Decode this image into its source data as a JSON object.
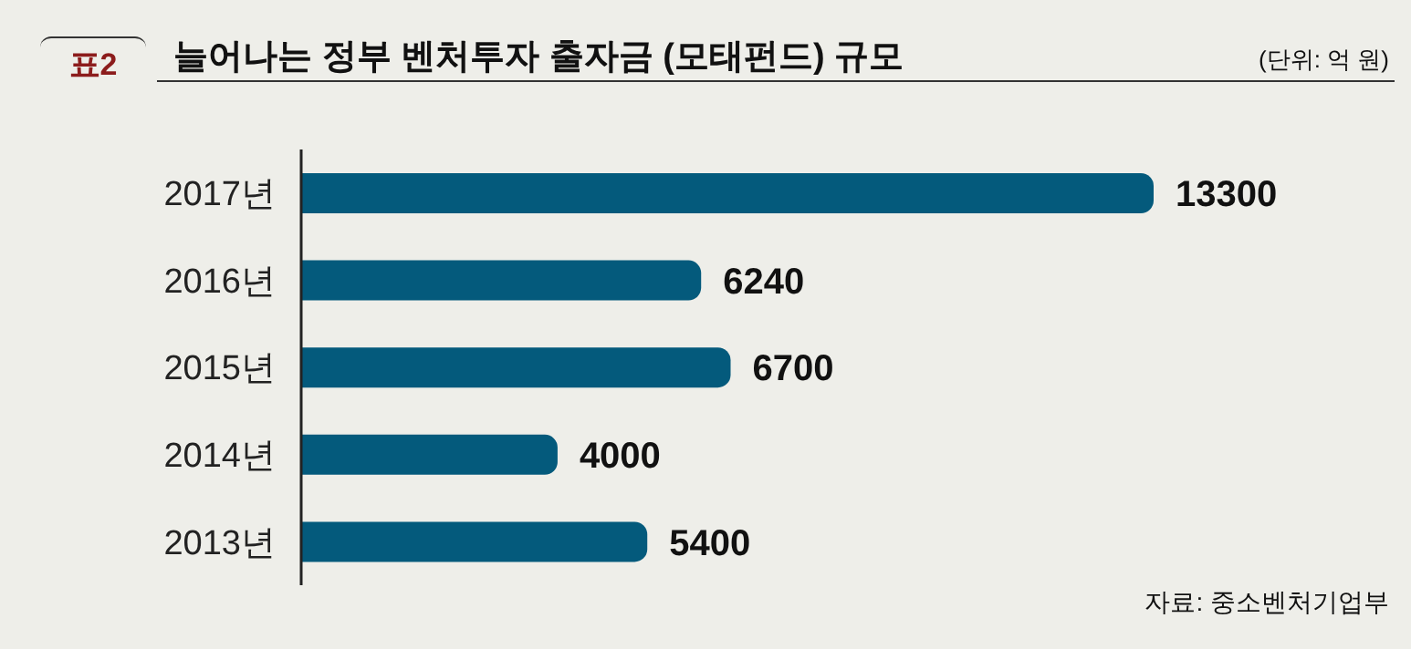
{
  "chart_data": {
    "type": "bar",
    "orientation": "horizontal",
    "title": "늘어나는 정부 벤처투자 출자금 (모태펀드) 규모",
    "categories": [
      "2017년",
      "2016년",
      "2015년",
      "2014년",
      "2013년"
    ],
    "values": [
      13300,
      6240,
      6700,
      4000,
      5400
    ],
    "color": "#045a7c",
    "data_labels": true,
    "annotations": [
      "표2",
      "(단위: 억 원)",
      "자료: 중소벤처기업부"
    ]
  }
}
